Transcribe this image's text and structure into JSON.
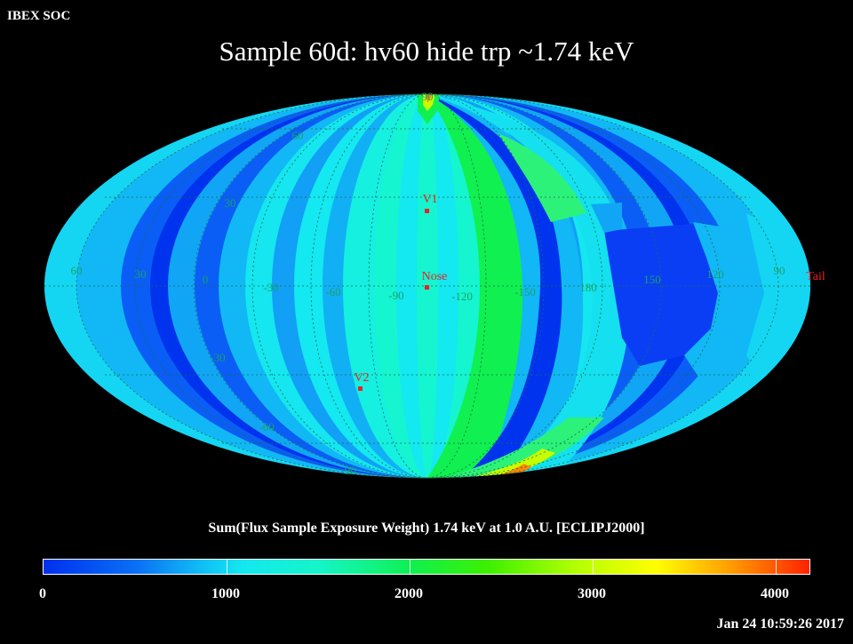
{
  "header": {
    "corner_label": "IBEX SOC",
    "title": "Sample 60d: hv60 hide trp ~1.74 keV"
  },
  "map": {
    "projection": "Mollweide",
    "colors": {
      "deep_blue": "#0033ee",
      "blue": "#0a5ef5",
      "light_blue": "#11b8f5",
      "cyan": "#14e8f0",
      "aqua": "#15f5d0",
      "green": "#10f050",
      "yellow_green": "#c8ff00",
      "orange": "#ff8800",
      "red": "#ff2200",
      "marker_red": "#ee2020",
      "grid_label": "#1aa06a"
    },
    "lon_labels": [
      "60",
      "30",
      "0",
      "-30",
      "-60",
      "-90",
      "-120",
      "-150",
      "180",
      "150",
      "120",
      "90"
    ],
    "lat_labels": [
      "60",
      "30",
      "0",
      "-30",
      "-60",
      "-90",
      "90"
    ],
    "markers": [
      {
        "label": "V1"
      },
      {
        "label": "Nose"
      },
      {
        "label": "V2"
      },
      {
        "label": "Tail"
      }
    ]
  },
  "colorbar": {
    "title": "Sum(Flux Sample Exposure Weight)  1.74 keV at 1.0 A.U. [ECLIPJ2000]",
    "ticks": [
      "0",
      "1000",
      "2000",
      "3000",
      "4000"
    ],
    "range": [
      0,
      4200
    ]
  },
  "footer": {
    "timestamp": "Jan 24 10:59:26 2017"
  }
}
